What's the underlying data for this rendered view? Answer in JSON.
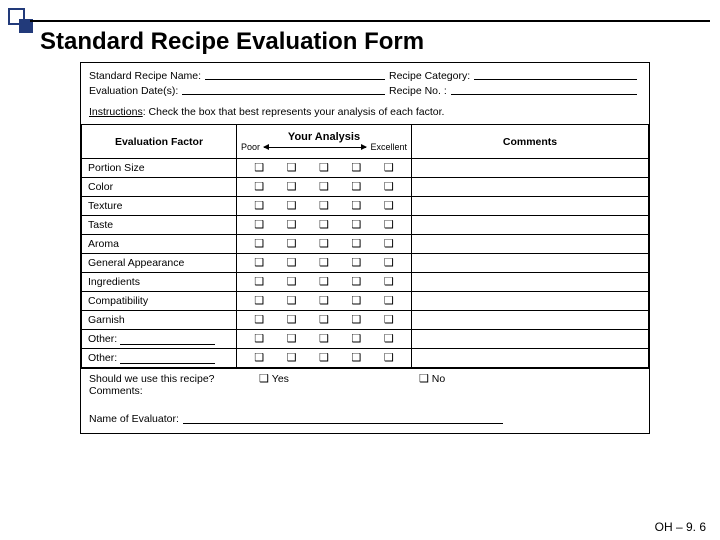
{
  "title": "Standard Recipe Evaluation Form",
  "meta": {
    "recipe_name_label": "Standard Recipe Name:",
    "eval_date_label": "Evaluation Date(s):",
    "category_label": "Recipe Category:",
    "recipe_no_label": "Recipe No. :"
  },
  "instructions": {
    "label": "Instructions",
    "text": ": Check the box that best represents your analysis of each factor."
  },
  "table": {
    "factor_header": "Evaluation Factor",
    "analysis_header": "Your Analysis",
    "scale_low": "Poor",
    "scale_high": "Excellent",
    "comments_header": "Comments",
    "factors": [
      "Portion Size",
      "Color",
      "Texture",
      "Taste",
      "Aroma",
      "General Appearance",
      "Ingredients",
      "Compatibility",
      "Garnish"
    ],
    "other_label": "Other:",
    "checkbox_glyph": "❑"
  },
  "footer": {
    "question": "Should we use this recipe?",
    "yes": "Yes",
    "no": "No",
    "comments_label": "Comments:"
  },
  "evaluator_label": "Name of Evaluator:",
  "page_ref": "OH – 9. 6",
  "colors": {
    "accent": "#223a7a",
    "text": "#000000",
    "bg": "#ffffff"
  }
}
